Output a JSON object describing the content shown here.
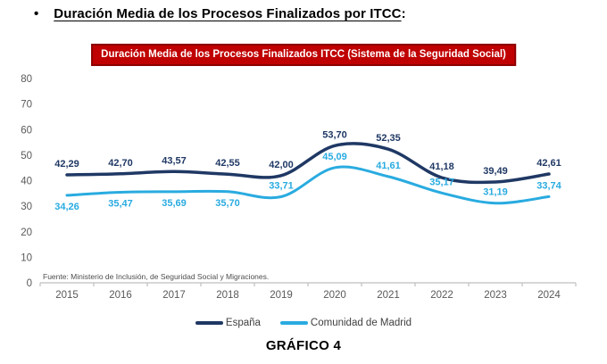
{
  "page": {
    "bullet": "•",
    "title": "Duración Media de los Procesos Finalizados por ITCC",
    "title_suffix": ":"
  },
  "banner": {
    "text": "Duración Media de los Procesos Finalizados ITCC (Sistema de la Seguridad Social)",
    "bg_color": "#C00000",
    "border_color": "#8E0000",
    "text_color": "#FFFFFF"
  },
  "chart_data": {
    "type": "line",
    "title": "Duración Media de los Procesos Finalizados ITCC (Sistema de la Seguridad Social)",
    "categories": [
      "2015",
      "2016",
      "2017",
      "2018",
      "2019",
      "2020",
      "2021",
      "2022",
      "2023",
      "2024"
    ],
    "series": [
      {
        "name": "España",
        "color": "#1F3864",
        "stroke_width": 3.5,
        "values": [
          42.29,
          42.7,
          43.57,
          42.55,
          42.0,
          53.7,
          52.35,
          41.18,
          39.49,
          42.61
        ],
        "label_sides": [
          "above",
          "above",
          "above",
          "above",
          "above",
          "above",
          "above",
          "above",
          "above",
          "above"
        ]
      },
      {
        "name": "Comunidad de Madrid",
        "color": "#29ABE0",
        "stroke_width": 3,
        "values": [
          34.26,
          35.47,
          35.69,
          35.7,
          33.71,
          45.09,
          41.61,
          35.17,
          31.19,
          33.74
        ],
        "label_sides": [
          "below",
          "below",
          "below",
          "below",
          "above",
          "above",
          "above",
          "above",
          "above",
          "above"
        ]
      }
    ],
    "ylim": [
      0,
      80
    ],
    "ytick_step": 10,
    "smooth": true,
    "grid": false,
    "legend_position": "bottom",
    "decimal_separator": ",",
    "source": "Fuente: Ministerio de Inclusión, de Seguridad Social y Migraciones.",
    "axis_color": "#BFBFBF",
    "tick_label_color": "#595959",
    "source_color": "#4D4D4D"
  },
  "caption": "GRÁFICO 4"
}
